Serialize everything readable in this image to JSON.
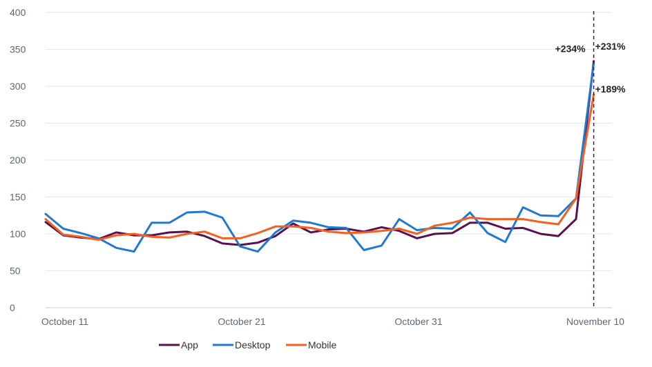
{
  "chart_data": {
    "type": "line",
    "x_tick_labels": [
      "October 11",
      "October 21",
      "October 31",
      "November 10"
    ],
    "x": [
      "Oct 11",
      "Oct 12",
      "Oct 13",
      "Oct 14",
      "Oct 15",
      "Oct 16",
      "Oct 17",
      "Oct 18",
      "Oct 19",
      "Oct 20",
      "Oct 21",
      "Oct 22",
      "Oct 23",
      "Oct 24",
      "Oct 25",
      "Oct 26",
      "Oct 27",
      "Oct 28",
      "Oct 29",
      "Oct 30",
      "Oct 31",
      "Nov 1",
      "Nov 2",
      "Nov 3",
      "Nov 4",
      "Nov 5",
      "Nov 6",
      "Nov 7",
      "Nov 8",
      "Nov 9",
      "Nov 10",
      "Nov 11"
    ],
    "ylim": [
      0,
      400
    ],
    "y_ticks": [
      0,
      50,
      100,
      150,
      200,
      250,
      300,
      350,
      400
    ],
    "grid": true,
    "legend_position": "bottom-left",
    "series": [
      {
        "name": "App",
        "color": "#5b0f4e",
        "values": [
          116,
          98,
          95,
          93,
          102,
          98,
          98,
          102,
          103,
          97,
          87,
          85,
          88,
          97,
          114,
          102,
          106,
          107,
          103,
          109,
          104,
          94,
          100,
          101,
          115,
          115,
          107,
          108,
          100,
          97,
          120,
          334
        ]
      },
      {
        "name": "Desktop",
        "color": "#1f78d1",
        "values": [
          127,
          107,
          101,
          94,
          81,
          76,
          115,
          115,
          129,
          130,
          122,
          83,
          76,
          102,
          118,
          115,
          109,
          108,
          78,
          84,
          120,
          105,
          108,
          107,
          129,
          101,
          89,
          136,
          125,
          124,
          148,
          331
        ]
      },
      {
        "name": "Mobile",
        "color": "#f4601f",
        "values": [
          120,
          99,
          96,
          92,
          98,
          100,
          96,
          95,
          100,
          103,
          94,
          94,
          101,
          110,
          110,
          108,
          103,
          101,
          102,
          104,
          107,
          100,
          111,
          115,
          122,
          120,
          120,
          120,
          116,
          113,
          148,
          289
        ]
      }
    ],
    "annotations": [
      {
        "text": "+234%",
        "series": "App"
      },
      {
        "text": "+231%",
        "series": "Desktop"
      },
      {
        "text": "+189%",
        "series": "Mobile"
      }
    ],
    "marker_line": {
      "x": "Nov 11",
      "color": "#5b0f4e",
      "style": "dashed"
    }
  }
}
